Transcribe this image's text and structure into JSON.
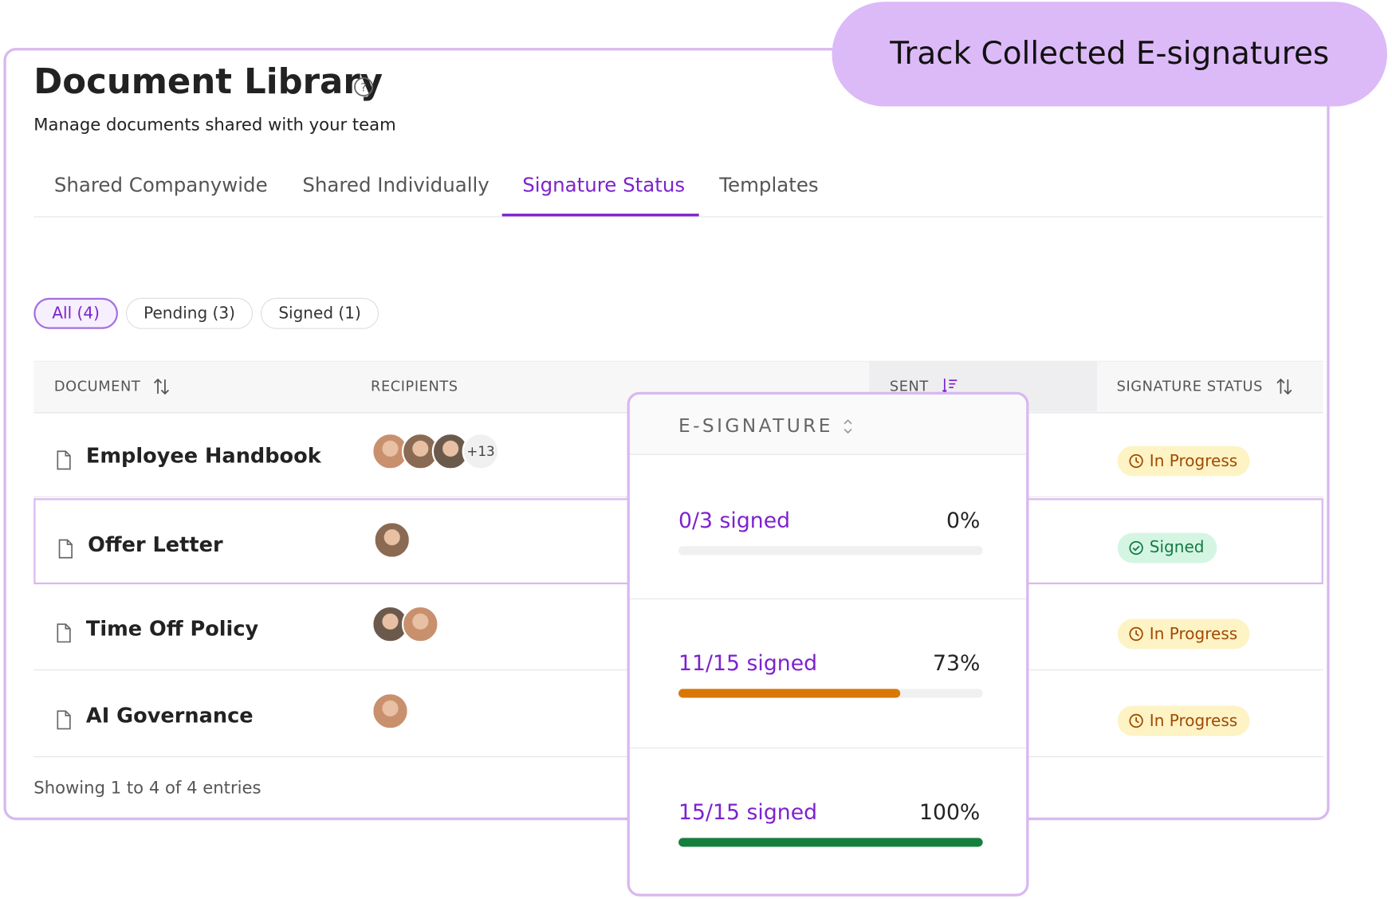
{
  "badge": "Track Collected E-signatures",
  "header": {
    "title": "Document Library",
    "subtitle": "Manage documents shared with your team"
  },
  "tabs": [
    "Shared Companywide",
    "Shared Individually",
    "Signature Status",
    "Templates"
  ],
  "filters": [
    "All (4)",
    "Pending (3)",
    "Signed (1)"
  ],
  "table": {
    "columns": [
      "DOCUMENT",
      "RECIPIENTS",
      "SENT",
      "SIGNATURE STATUS"
    ],
    "rows": [
      {
        "document": "Employee Handbook",
        "more_recipients": "+13",
        "status": "In Progress"
      },
      {
        "document": "Offer Letter",
        "status": "Signed"
      },
      {
        "document": "Time Off Policy",
        "status": "In Progress"
      },
      {
        "document": "AI Governance",
        "status": "In Progress"
      }
    ]
  },
  "footer": "Showing 1 to 4 of 4 entries",
  "popup": {
    "header": "E-SIGNATURE",
    "items": [
      {
        "label": "0/3 signed",
        "value": 0,
        "value_label": "0%"
      },
      {
        "label": "11/15 signed",
        "value": 73,
        "value_label": "73%"
      },
      {
        "label": "15/15 signed",
        "value": 100,
        "value_label": "100%"
      }
    ]
  }
}
